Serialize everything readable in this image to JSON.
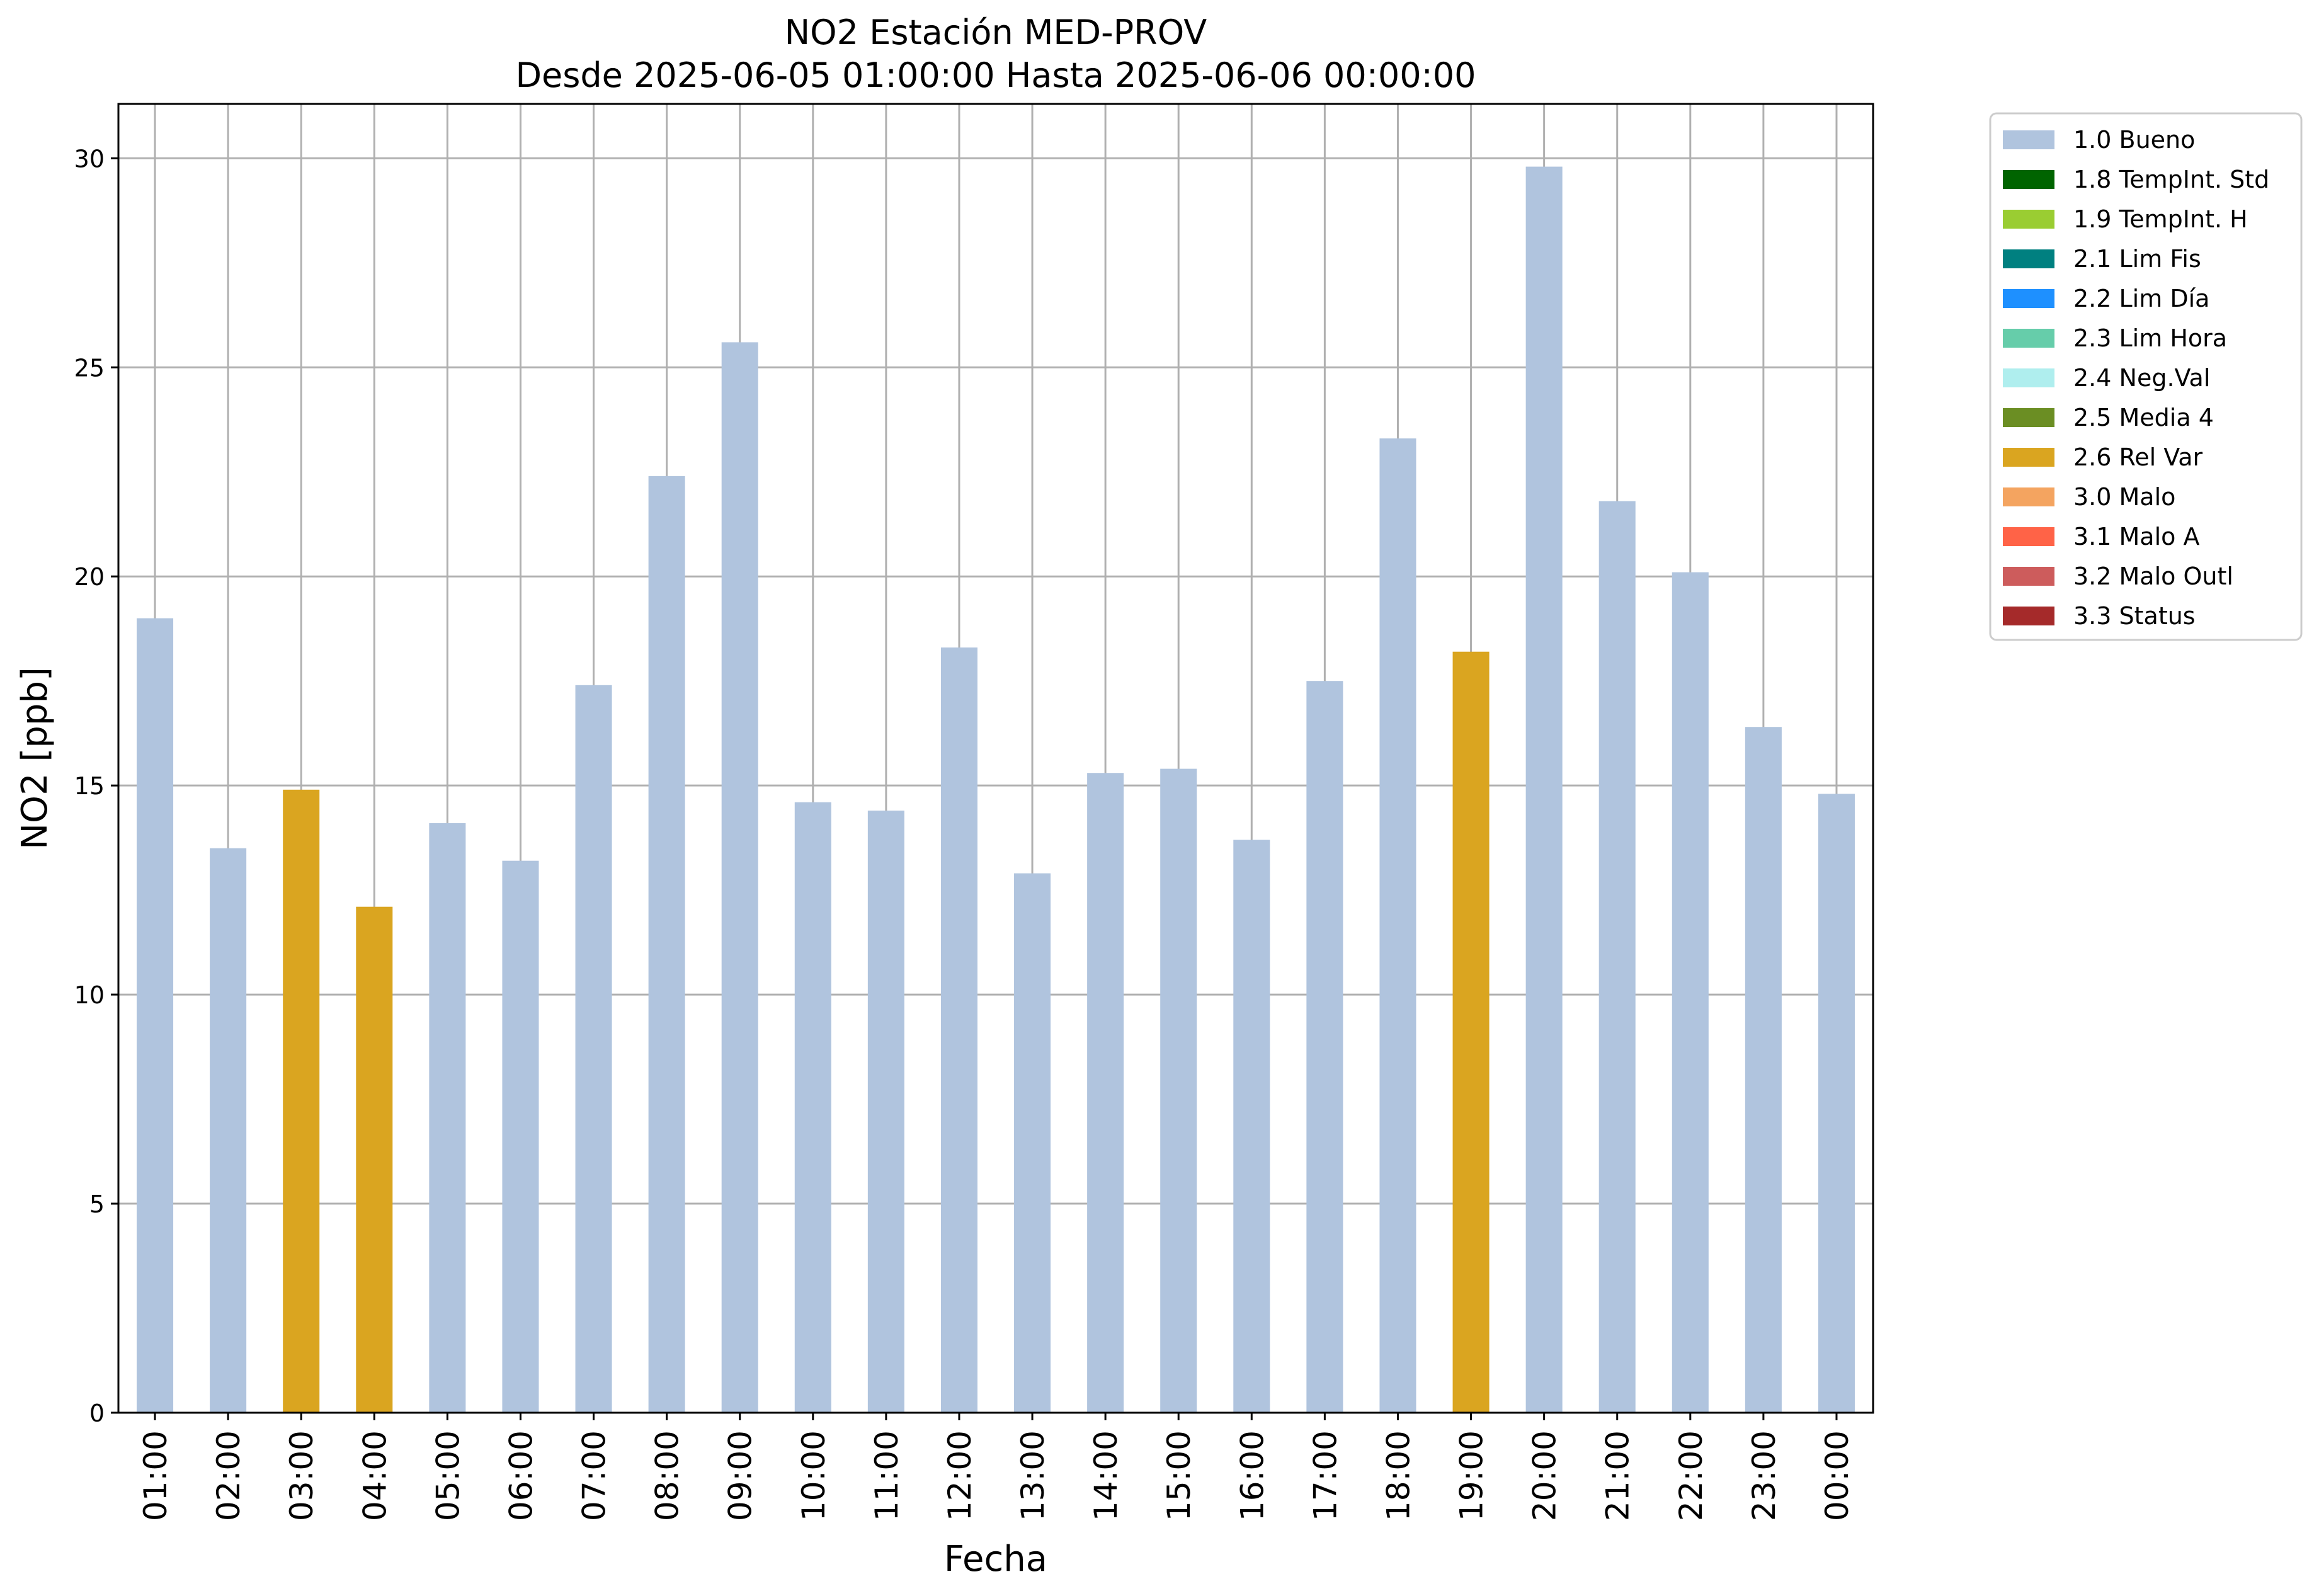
{
  "chart_data": {
    "type": "bar",
    "title": "NO2 Estación MED-PROV",
    "subtitle": "Desde 2025-06-05 01:00:00 Hasta 2025-06-06 00:00:00",
    "xlabel": "Fecha",
    "ylabel": "NO2 [ppb]",
    "ylim": [
      0,
      31.3
    ],
    "yticks": [
      0,
      5,
      10,
      15,
      20,
      25,
      30
    ],
    "grid": true,
    "legend_position": "outside-top-right",
    "categories": [
      "01:00",
      "02:00",
      "03:00",
      "04:00",
      "05:00",
      "06:00",
      "07:00",
      "08:00",
      "09:00",
      "10:00",
      "11:00",
      "12:00",
      "13:00",
      "14:00",
      "15:00",
      "16:00",
      "17:00",
      "18:00",
      "19:00",
      "20:00",
      "21:00",
      "22:00",
      "23:00",
      "00:00"
    ],
    "values": [
      19.0,
      13.5,
      14.9,
      12.1,
      14.1,
      13.2,
      17.4,
      22.4,
      25.6,
      14.6,
      14.4,
      18.3,
      12.9,
      15.3,
      15.4,
      13.7,
      17.5,
      23.3,
      18.2,
      29.8,
      21.8,
      20.1,
      16.4,
      14.8
    ],
    "flags": [
      "1.0 Bueno",
      "1.0 Bueno",
      "2.6 Rel Var",
      "2.6 Rel Var",
      "1.0 Bueno",
      "1.0 Bueno",
      "1.0 Bueno",
      "1.0 Bueno",
      "1.0 Bueno",
      "1.0 Bueno",
      "1.0 Bueno",
      "1.0 Bueno",
      "1.0 Bueno",
      "1.0 Bueno",
      "1.0 Bueno",
      "1.0 Bueno",
      "1.0 Bueno",
      "1.0 Bueno",
      "2.6 Rel Var",
      "1.0 Bueno",
      "1.0 Bueno",
      "1.0 Bueno",
      "1.0 Bueno",
      "1.0 Bueno"
    ],
    "legend": [
      {
        "name": "1.0 Bueno",
        "color": "#b0c4de"
      },
      {
        "name": "1.8 TempInt. Std",
        "color": "#006400"
      },
      {
        "name": "1.9 TempInt. H",
        "color": "#9acd32"
      },
      {
        "name": "2.1 Lim Fis",
        "color": "#008080"
      },
      {
        "name": "2.2 Lim Día",
        "color": "#1e90ff"
      },
      {
        "name": "2.3 Lim Hora",
        "color": "#66cdaa"
      },
      {
        "name": "2.4 Neg.Val",
        "color": "#afeeee"
      },
      {
        "name": "2.5 Media 4",
        "color": "#6b8e23"
      },
      {
        "name": "2.6 Rel Var",
        "color": "#daa520"
      },
      {
        "name": "3.0 Malo",
        "color": "#f4a460"
      },
      {
        "name": "3.1 Malo A",
        "color": "#ff6347"
      },
      {
        "name": "3.2 Malo Outl",
        "color": "#cd5c5c"
      },
      {
        "name": "3.3 Status",
        "color": "#a52a2a"
      }
    ]
  }
}
